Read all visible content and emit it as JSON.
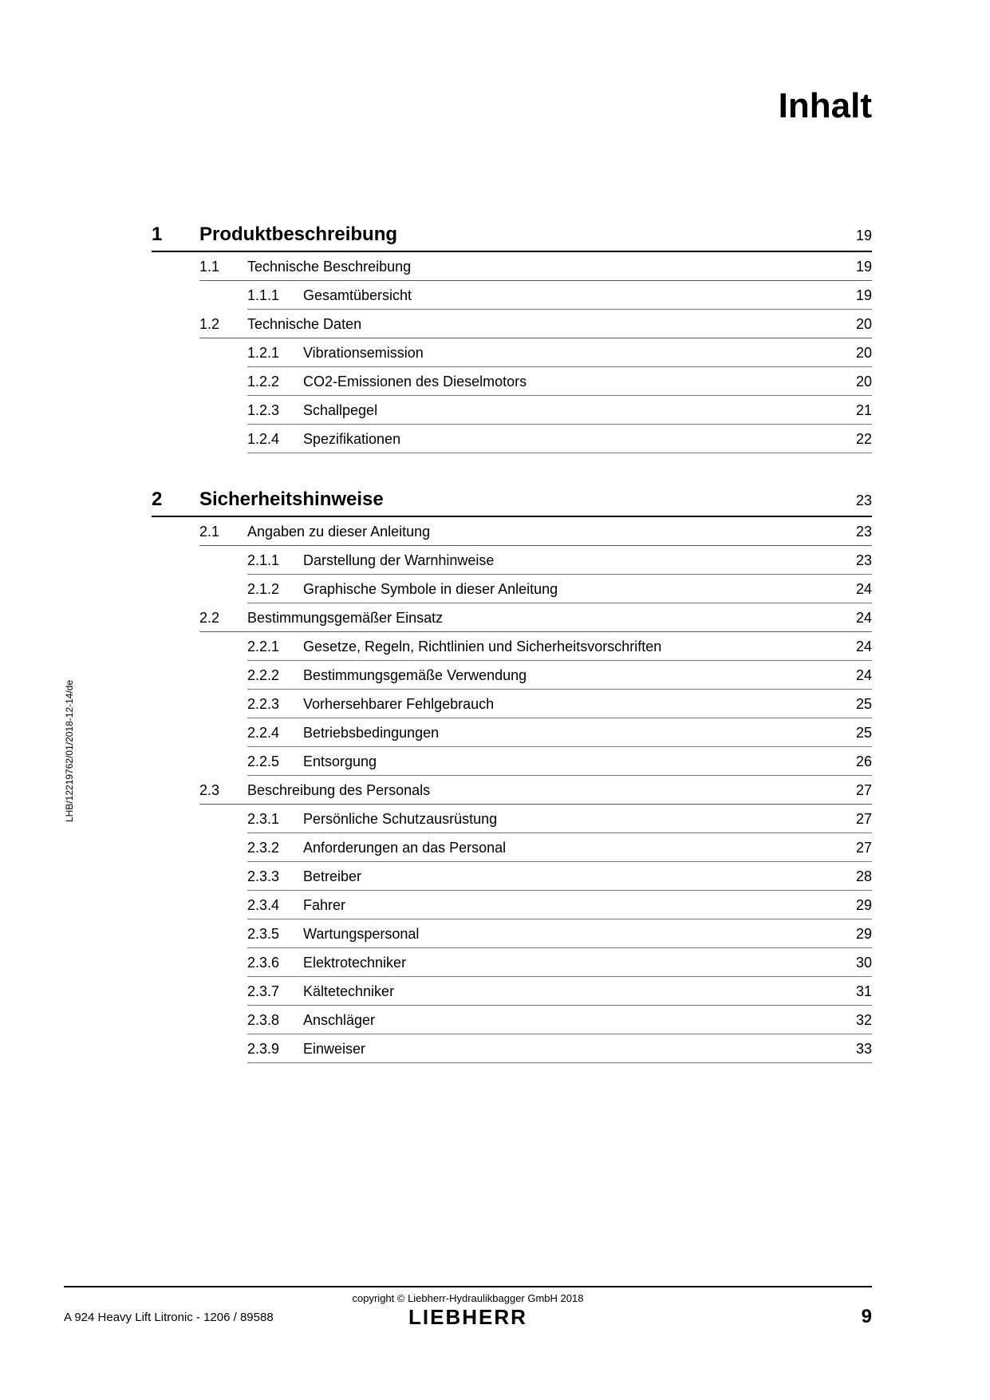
{
  "title": "Inhalt",
  "side_label": "LHB/12219762/01/2018-12-14/de",
  "footer": {
    "copyright": "copyright © Liebherr-Hydraulikbagger GmbH 2018",
    "logo": "LIEBHERR",
    "doc_info": "A 924 Heavy Lift Litronic  - 1206 / 89588",
    "page": "9"
  },
  "toc": [
    {
      "num": "1",
      "title": "Produktbeschreibung",
      "page": "19",
      "sections": [
        {
          "num": "1.1",
          "title": "Technische Beschreibung",
          "page": "19",
          "subs": [
            {
              "num": "1.1.1",
              "title": "Gesamtübersicht",
              "page": "19"
            }
          ]
        },
        {
          "num": "1.2",
          "title": "Technische Daten",
          "page": "20",
          "subs": [
            {
              "num": "1.2.1",
              "title": "Vibrationsemission",
              "page": "20"
            },
            {
              "num": "1.2.2",
              "title": "CO2-Emissionen des Dieselmotors",
              "page": "20"
            },
            {
              "num": "1.2.3",
              "title": "Schallpegel",
              "page": "21"
            },
            {
              "num": "1.2.4",
              "title": "Spezifikationen",
              "page": "22"
            }
          ]
        }
      ]
    },
    {
      "num": "2",
      "title": "Sicherheitshinweise",
      "page": "23",
      "sections": [
        {
          "num": "2.1",
          "title": "Angaben zu dieser Anleitung",
          "page": "23",
          "subs": [
            {
              "num": "2.1.1",
              "title": "Darstellung der Warnhinweise",
              "page": "23"
            },
            {
              "num": "2.1.2",
              "title": "Graphische Symbole in dieser Anleitung",
              "page": "24"
            }
          ]
        },
        {
          "num": "2.2",
          "title": "Bestimmungsgemäßer Einsatz",
          "page": "24",
          "subs": [
            {
              "num": "2.2.1",
              "title": "Gesetze, Regeln, Richtlinien und Sicherheitsvorschriften",
              "page": "24"
            },
            {
              "num": "2.2.2",
              "title": "Bestimmungsgemäße Verwendung",
              "page": "24"
            },
            {
              "num": "2.2.3",
              "title": "Vorhersehbarer Fehlgebrauch",
              "page": "25"
            },
            {
              "num": "2.2.4",
              "title": "Betriebsbedingungen",
              "page": "25"
            },
            {
              "num": "2.2.5",
              "title": "Entsorgung",
              "page": "26"
            }
          ]
        },
        {
          "num": "2.3",
          "title": "Beschreibung des Personals",
          "page": "27",
          "subs": [
            {
              "num": "2.3.1",
              "title": "Persönliche Schutzausrüstung",
              "page": "27"
            },
            {
              "num": "2.3.2",
              "title": "Anforderungen an das Personal",
              "page": "27"
            },
            {
              "num": "2.3.3",
              "title": "Betreiber",
              "page": "28"
            },
            {
              "num": "2.3.4",
              "title": "Fahrer",
              "page": "29"
            },
            {
              "num": "2.3.5",
              "title": "Wartungspersonal",
              "page": "29"
            },
            {
              "num": "2.3.6",
              "title": "Elektrotechniker",
              "page": "30"
            },
            {
              "num": "2.3.7",
              "title": "Kältetechniker",
              "page": "31"
            },
            {
              "num": "2.3.8",
              "title": "Anschläger",
              "page": "32"
            },
            {
              "num": "2.3.9",
              "title": "Einweiser",
              "page": "33"
            }
          ]
        }
      ]
    }
  ]
}
